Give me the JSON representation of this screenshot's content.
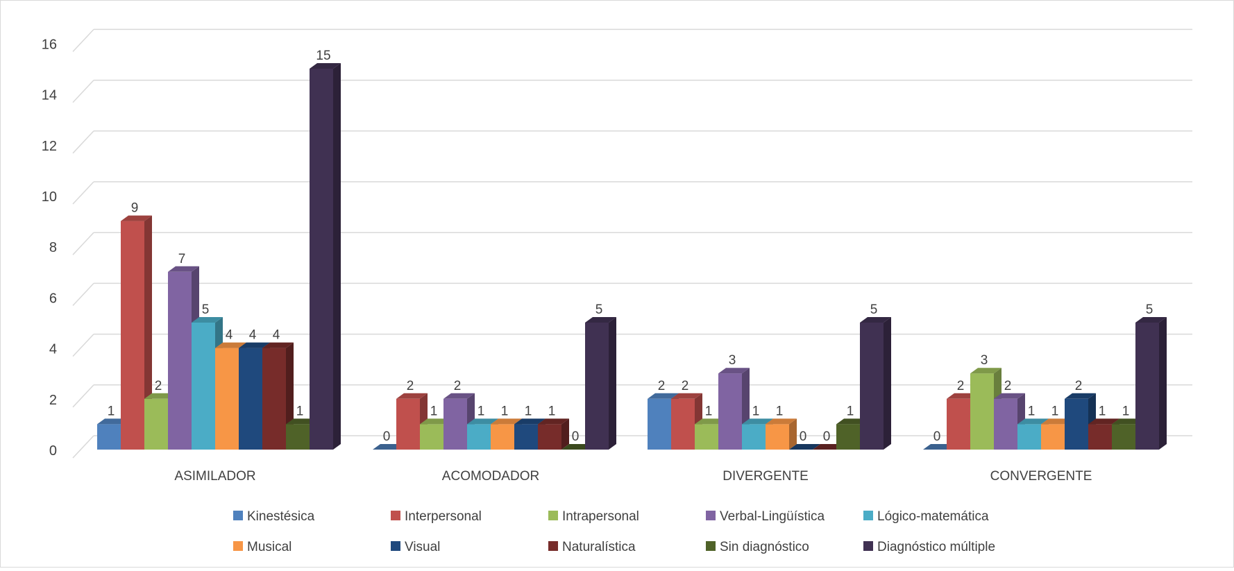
{
  "chart_data": {
    "type": "bar",
    "title": "",
    "xlabel": "",
    "ylabel": "",
    "ylim": [
      0,
      16
    ],
    "yticks": [
      "0",
      "2",
      "4",
      "6",
      "8",
      "10",
      "12",
      "14",
      "16"
    ],
    "grid": true,
    "legend_position": "bottom",
    "categories": [
      "ASIMILADOR",
      "ACOMODADOR",
      "DIVERGENTE",
      "CONVERGENTE"
    ],
    "series": [
      {
        "name": "Kinestésica",
        "color": "#4F81BD",
        "values": [
          1,
          0,
          2,
          0
        ]
      },
      {
        "name": "Interpersonal",
        "color": "#C0504D",
        "values": [
          9,
          2,
          2,
          2
        ]
      },
      {
        "name": "Intrapersonal",
        "color": "#9BBB59",
        "values": [
          2,
          1,
          1,
          3
        ]
      },
      {
        "name": "Verbal-Lingüística",
        "color": "#8064A2",
        "values": [
          7,
          2,
          3,
          2
        ]
      },
      {
        "name": "Lógico-matemática",
        "color": "#4BACC6",
        "values": [
          5,
          1,
          1,
          1
        ]
      },
      {
        "name": "Musical",
        "color": "#F79646",
        "values": [
          4,
          1,
          1,
          1
        ]
      },
      {
        "name": "Visual",
        "color": "#1F497D",
        "values": [
          4,
          1,
          0,
          2
        ]
      },
      {
        "name": "Naturalística",
        "color": "#772C2A",
        "values": [
          4,
          1,
          0,
          1
        ]
      },
      {
        "name": "Sin diagnóstico",
        "color": "#4F6228",
        "values": [
          1,
          0,
          1,
          1
        ]
      },
      {
        "name": "Diagnóstico múltiple",
        "color": "#403152",
        "values": [
          15,
          5,
          5,
          5
        ]
      }
    ]
  }
}
